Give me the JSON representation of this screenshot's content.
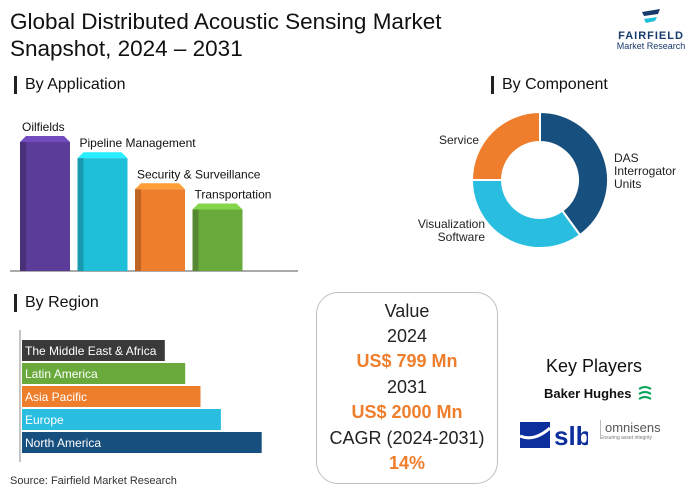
{
  "header": {
    "title_line1": "Global Distributed Acoustic Sensing Market",
    "title_line2": "Snapshot, 2024 – 2031",
    "logo_brand": "FAIRFIELD",
    "logo_sub": "Market Research"
  },
  "sections": {
    "application": "By Application",
    "component": "By Component",
    "region": "By Region"
  },
  "value_box": {
    "label": "Value",
    "year1": "2024",
    "value1": "US$ 799 Mn",
    "year2": "2031",
    "value2": "US$ 2000 Mn",
    "cagr_label": "CAGR (2024-2031)",
    "cagr_value": "14%"
  },
  "key_players": {
    "title": "Key Players",
    "players": [
      "Baker Hughes",
      "slb",
      "omnisens",
      "Ensuring asset integrity"
    ]
  },
  "source": "Source: Fairfield Market Research",
  "chart_data": [
    {
      "type": "bar",
      "title": "By Application",
      "categories": [
        "Oilfields",
        "Pipeline Management",
        "Security & Surveillance",
        "Transportation"
      ],
      "values": [
        100,
        88,
        65,
        50
      ],
      "colors": [
        "#5b3d99",
        "#1fbfd9",
        "#ef7e2c",
        "#6aaa3c"
      ],
      "ylim": [
        0,
        100
      ],
      "grid": false,
      "legend": "none"
    },
    {
      "type": "pie",
      "title": "By Component",
      "categories": [
        "DAS Interrogator Units",
        "Visualization Software",
        "Service"
      ],
      "values": [
        40,
        35,
        25
      ],
      "colors": [
        "#174f7e",
        "#29bde0",
        "#ef7e2c"
      ],
      "donut": true
    },
    {
      "type": "bar",
      "orientation": "horizontal",
      "title": "By Region",
      "categories": [
        "The Middle East & Africa",
        "Latin America",
        "Asia Pacific",
        "Europe",
        "North America"
      ],
      "values": [
        56,
        64,
        70,
        78,
        94
      ],
      "colors": [
        "#3a3a3a",
        "#6aaa3c",
        "#ef7e2c",
        "#29bde0",
        "#174f7e"
      ],
      "xlim": [
        0,
        100
      ],
      "grid": false,
      "legend": "none"
    }
  ]
}
